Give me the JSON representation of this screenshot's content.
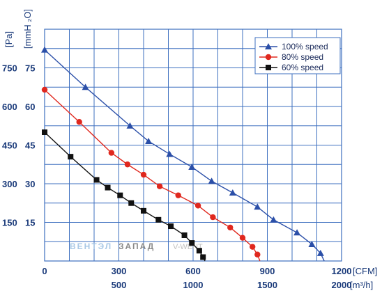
{
  "chart_data": {
    "type": "line",
    "x_axis_primary": {
      "unit": "[CFM]",
      "ticks": [
        0,
        300,
        600,
        900,
        1200
      ],
      "range": [
        0,
        1200
      ]
    },
    "x_axis_secondary": {
      "unit": "[m³/h]",
      "ticks": [
        500,
        1000,
        1500,
        2000
      ]
    },
    "y_axis_primary": {
      "unit": "[Pa]",
      "ticks": [
        150,
        300,
        450,
        600,
        750
      ]
    },
    "y_axis_secondary": {
      "unit": "[mmH ₂O]",
      "ticks": [
        15,
        30,
        45,
        60,
        75
      ],
      "range": [
        0,
        90
      ]
    },
    "grid": true,
    "legend_position": "top-right",
    "series": [
      {
        "name": "100%  speed",
        "color": "#2b4fa8",
        "marker": "triangle",
        "points": [
          [
            0,
            82
          ],
          [
            165,
            67.5
          ],
          [
            345,
            52.5
          ],
          [
            420,
            46.5
          ],
          [
            505,
            41.5
          ],
          [
            595,
            36.5
          ],
          [
            675,
            31
          ],
          [
            760,
            26.5
          ],
          [
            860,
            21
          ],
          [
            925,
            16
          ],
          [
            1020,
            11
          ],
          [
            1080,
            6.5
          ],
          [
            1115,
            3
          ],
          [
            1130,
            0
          ]
        ]
      },
      {
        "name": "80%  speed",
        "color": "#e0281e",
        "marker": "circle",
        "points": [
          [
            0,
            66.5
          ],
          [
            140,
            54
          ],
          [
            270,
            42
          ],
          [
            335,
            37.5
          ],
          [
            400,
            33.5
          ],
          [
            465,
            29
          ],
          [
            540,
            25.5
          ],
          [
            620,
            21.5
          ],
          [
            680,
            17
          ],
          [
            750,
            13
          ],
          [
            800,
            9
          ],
          [
            840,
            5.5
          ],
          [
            860,
            2.5
          ],
          [
            870,
            0
          ]
        ]
      },
      {
        "name": "60%  speed",
        "color": "#111111",
        "marker": "square",
        "points": [
          [
            0,
            50
          ],
          [
            105,
            40.5
          ],
          [
            210,
            31.5
          ],
          [
            255,
            28.5
          ],
          [
            305,
            25.5
          ],
          [
            350,
            22.5
          ],
          [
            400,
            19.5
          ],
          [
            460,
            16
          ],
          [
            510,
            13.5
          ],
          [
            565,
            10
          ],
          [
            595,
            7
          ],
          [
            625,
            4
          ],
          [
            640,
            1.5
          ],
          [
            648,
            0
          ]
        ]
      }
    ]
  },
  "watermark": {
    "part1": "ВЕНТЭЛ",
    "part2": "ЗАПАД",
    "part3": "V-WENT"
  }
}
